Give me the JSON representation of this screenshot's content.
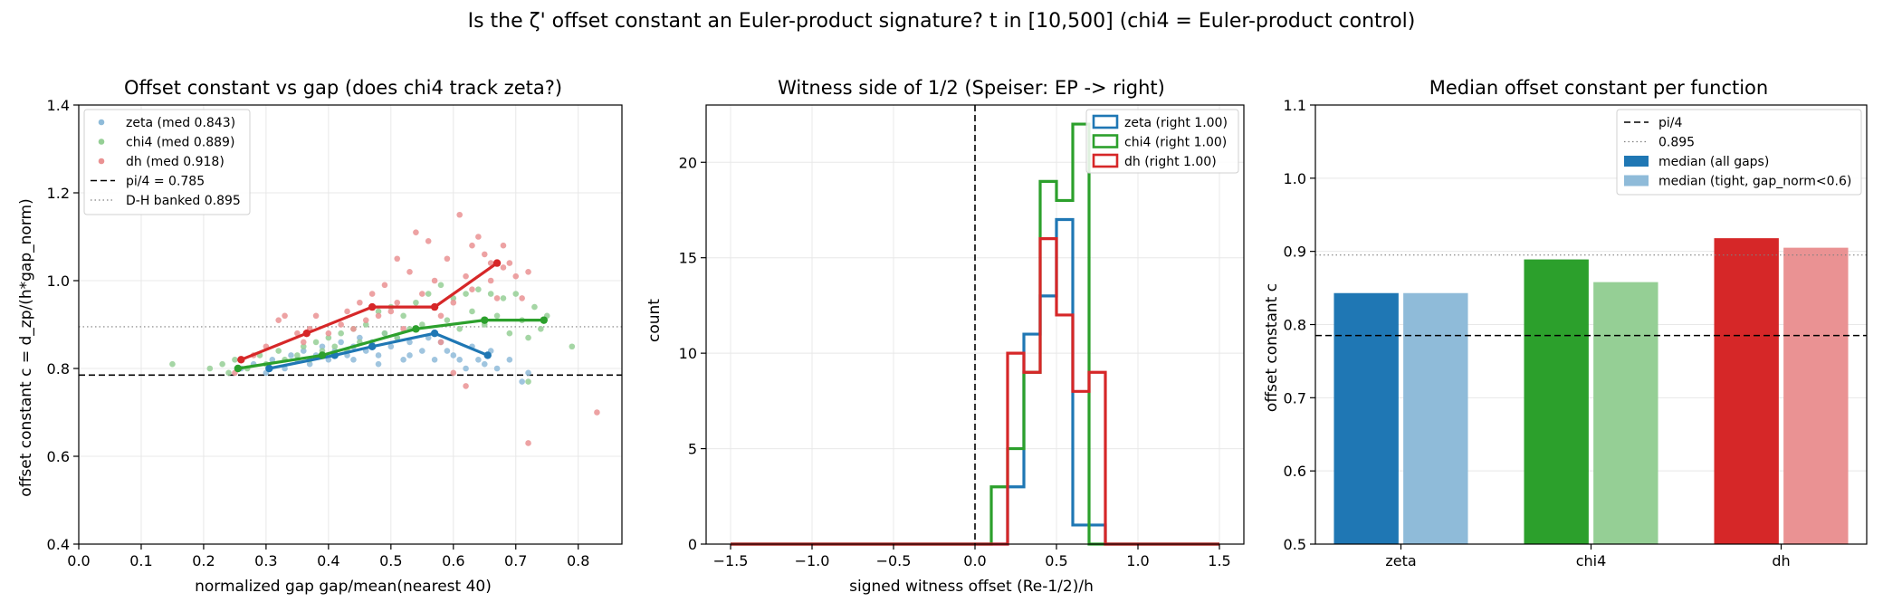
{
  "suptitle": "Is the ζ' offset constant an Euler-product signature?  t in [10,500]  (chi4 = Euler-product control)",
  "colors": {
    "zeta": "#1f77b4",
    "chi4": "#2ca02c",
    "dh": "#d62728",
    "zeta_light": "#8fbbd9",
    "chi4_light": "#95cf95",
    "dh_light": "#ea9293"
  },
  "chart_data": [
    {
      "type": "scatter",
      "title": "Offset constant vs gap  (does chi4 track zeta?)",
      "xlabel": "normalized gap  gap/mean(nearest 40)",
      "ylabel": "offset constant  c = d_zp/(h*gap_norm)",
      "xlim": [
        0.0,
        0.87
      ],
      "ylim": [
        0.4,
        1.4
      ],
      "xticks": [
        0.0,
        0.1,
        0.2,
        0.3,
        0.4,
        0.5,
        0.6,
        0.7,
        0.8
      ],
      "yticks": [
        0.4,
        0.6,
        0.8,
        1.0,
        1.2,
        1.4
      ],
      "grid": true,
      "legend_position": "top-left",
      "legend": [
        {
          "label": "zeta (med 0.843)",
          "kind": "dot",
          "color": "#8fbbd9"
        },
        {
          "label": "chi4 (med 0.889)",
          "kind": "dot",
          "color": "#95cf95"
        },
        {
          "label": "dh (med 0.918)",
          "kind": "dot",
          "color": "#ea9293"
        },
        {
          "label": "pi/4 = 0.785",
          "kind": "dashed",
          "color": "#000000"
        },
        {
          "label": "D-H banked 0.895",
          "kind": "dotted",
          "color": "#808080"
        }
      ],
      "hlines": [
        {
          "y": 0.785,
          "style": "dashed",
          "color": "#000000"
        },
        {
          "y": 0.895,
          "style": "dotted",
          "color": "#808080"
        }
      ],
      "series": [
        {
          "key": "zeta",
          "points": [
            [
              0.26,
              0.8
            ],
            [
              0.28,
              0.81
            ],
            [
              0.3,
              0.79
            ],
            [
              0.31,
              0.82
            ],
            [
              0.33,
              0.8
            ],
            [
              0.34,
              0.83
            ],
            [
              0.35,
              0.82
            ],
            [
              0.36,
              0.84
            ],
            [
              0.37,
              0.81
            ],
            [
              0.38,
              0.83
            ],
            [
              0.39,
              0.85
            ],
            [
              0.4,
              0.82
            ],
            [
              0.41,
              0.84
            ],
            [
              0.42,
              0.86
            ],
            [
              0.43,
              0.83
            ],
            [
              0.44,
              0.85
            ],
            [
              0.45,
              0.87
            ],
            [
              0.46,
              0.84
            ],
            [
              0.47,
              0.86
            ],
            [
              0.48,
              0.83
            ],
            [
              0.49,
              0.88
            ],
            [
              0.5,
              0.85
            ],
            [
              0.51,
              0.87
            ],
            [
              0.52,
              0.82
            ],
            [
              0.53,
              0.86
            ],
            [
              0.54,
              0.89
            ],
            [
              0.55,
              0.84
            ],
            [
              0.56,
              0.87
            ],
            [
              0.57,
              0.82
            ],
            [
              0.58,
              0.86
            ],
            [
              0.59,
              0.84
            ],
            [
              0.6,
              0.83
            ],
            [
              0.61,
              0.82
            ],
            [
              0.62,
              0.8
            ],
            [
              0.63,
              0.85
            ],
            [
              0.64,
              0.82
            ],
            [
              0.65,
              0.81
            ],
            [
              0.66,
              0.84
            ],
            [
              0.67,
              0.8
            ],
            [
              0.69,
              0.82
            ],
            [
              0.71,
              0.77
            ],
            [
              0.72,
              0.79
            ],
            [
              0.48,
              0.81
            ],
            [
              0.44,
              0.82
            ],
            [
              0.53,
              0.83
            ]
          ],
          "medians_x": [
            0.305,
            0.41,
            0.47,
            0.57,
            0.655
          ],
          "medians_y": [
            0.8,
            0.83,
            0.85,
            0.88,
            0.83
          ]
        },
        {
          "key": "chi4",
          "points": [
            [
              0.15,
              0.81
            ],
            [
              0.21,
              0.8
            ],
            [
              0.23,
              0.81
            ],
            [
              0.24,
              0.79
            ],
            [
              0.25,
              0.82
            ],
            [
              0.27,
              0.8
            ],
            [
              0.29,
              0.83
            ],
            [
              0.3,
              0.81
            ],
            [
              0.32,
              0.84
            ],
            [
              0.33,
              0.82
            ],
            [
              0.35,
              0.83
            ],
            [
              0.36,
              0.85
            ],
            [
              0.37,
              0.82
            ],
            [
              0.38,
              0.86
            ],
            [
              0.39,
              0.84
            ],
            [
              0.4,
              0.87
            ],
            [
              0.41,
              0.85
            ],
            [
              0.42,
              0.88
            ],
            [
              0.43,
              0.84
            ],
            [
              0.44,
              0.89
            ],
            [
              0.45,
              0.86
            ],
            [
              0.46,
              0.9
            ],
            [
              0.47,
              0.85
            ],
            [
              0.48,
              0.93
            ],
            [
              0.49,
              0.88
            ],
            [
              0.5,
              0.94
            ],
            [
              0.51,
              0.87
            ],
            [
              0.52,
              0.92
            ],
            [
              0.53,
              0.89
            ],
            [
              0.54,
              0.95
            ],
            [
              0.55,
              0.9
            ],
            [
              0.56,
              0.97
            ],
            [
              0.57,
              0.88
            ],
            [
              0.58,
              0.99
            ],
            [
              0.59,
              0.91
            ],
            [
              0.6,
              0.96
            ],
            [
              0.61,
              0.89
            ],
            [
              0.62,
              0.97
            ],
            [
              0.63,
              0.93
            ],
            [
              0.64,
              0.98
            ],
            [
              0.65,
              0.9
            ],
            [
              0.66,
              0.97
            ],
            [
              0.67,
              0.92
            ],
            [
              0.68,
              0.96
            ],
            [
              0.69,
              0.88
            ],
            [
              0.7,
              0.97
            ],
            [
              0.71,
              0.91
            ],
            [
              0.72,
              0.87
            ],
            [
              0.73,
              0.94
            ],
            [
              0.74,
              0.89
            ],
            [
              0.75,
              0.92
            ],
            [
              0.79,
              0.85
            ],
            [
              0.72,
              0.77
            ]
          ],
          "medians_x": [
            0.255,
            0.39,
            0.54,
            0.65,
            0.745
          ],
          "medians_y": [
            0.8,
            0.83,
            0.89,
            0.91,
            0.91
          ]
        },
        {
          "key": "dh",
          "points": [
            [
              0.25,
              0.79
            ],
            [
              0.28,
              0.83
            ],
            [
              0.3,
              0.85
            ],
            [
              0.32,
              0.91
            ],
            [
              0.33,
              0.92
            ],
            [
              0.35,
              0.88
            ],
            [
              0.36,
              0.86
            ],
            [
              0.37,
              0.89
            ],
            [
              0.38,
              0.92
            ],
            [
              0.4,
              0.88
            ],
            [
              0.42,
              0.9
            ],
            [
              0.43,
              0.93
            ],
            [
              0.44,
              0.89
            ],
            [
              0.45,
              0.95
            ],
            [
              0.46,
              0.91
            ],
            [
              0.47,
              0.97
            ],
            [
              0.48,
              0.92
            ],
            [
              0.49,
              0.99
            ],
            [
              0.5,
              0.93
            ],
            [
              0.51,
              0.95
            ],
            [
              0.52,
              0.89
            ],
            [
              0.53,
              1.02
            ],
            [
              0.54,
              1.11
            ],
            [
              0.55,
              0.97
            ],
            [
              0.56,
              1.09
            ],
            [
              0.57,
              1.0
            ],
            [
              0.58,
              0.86
            ],
            [
              0.59,
              1.05
            ],
            [
              0.6,
              0.95
            ],
            [
              0.61,
              1.15
            ],
            [
              0.62,
              1.01
            ],
            [
              0.63,
              0.98
            ],
            [
              0.64,
              1.1
            ],
            [
              0.65,
              1.06
            ],
            [
              0.66,
              1.0
            ],
            [
              0.67,
              0.96
            ],
            [
              0.68,
              1.08
            ],
            [
              0.69,
              1.04
            ],
            [
              0.7,
              1.01
            ],
            [
              0.71,
              0.96
            ],
            [
              0.72,
              1.02
            ],
            [
              0.63,
              1.08
            ],
            [
              0.6,
              0.79
            ],
            [
              0.62,
              0.76
            ],
            [
              0.72,
              0.63
            ],
            [
              0.83,
              0.7
            ],
            [
              0.58,
              0.92
            ],
            [
              0.66,
              1.04
            ],
            [
              0.51,
              1.05
            ],
            [
              0.68,
              1.03
            ]
          ],
          "medians_x": [
            0.26,
            0.365,
            0.47,
            0.57,
            0.67
          ],
          "medians_y": [
            0.82,
            0.88,
            0.94,
            0.94,
            1.04
          ]
        }
      ]
    },
    {
      "type": "histogram",
      "title": "Witness side of 1/2  (Speiser: EP -> right)",
      "xlabel": "signed witness offset  (Re-1/2)/h",
      "ylabel": "count",
      "xlim": [
        -1.65,
        1.65
      ],
      "ylim": [
        0,
        23
      ],
      "xticks": [
        -1.5,
        -1.0,
        -0.5,
        0.0,
        0.5,
        1.0,
        1.5
      ],
      "yticks": [
        0,
        5,
        10,
        15,
        20
      ],
      "grid": true,
      "legend_position": "top-right",
      "vline": {
        "x": 0.0,
        "style": "dashed",
        "color": "#000000"
      },
      "bin_edges": [
        -1.5,
        0.0,
        0.1,
        0.2,
        0.3,
        0.4,
        0.5,
        0.6,
        0.7,
        0.8,
        1.5
      ],
      "series": [
        {
          "key": "zeta",
          "name": "zeta (right 1.00)",
          "counts": [
            0,
            0,
            0,
            3,
            11,
            13,
            17,
            1,
            1,
            0
          ]
        },
        {
          "key": "chi4",
          "name": "chi4 (right 1.00)",
          "counts": [
            0,
            0,
            3,
            5,
            9,
            19,
            18,
            22,
            0,
            0
          ]
        },
        {
          "key": "dh",
          "name": "dh (right 1.00)",
          "counts": [
            0,
            0,
            0,
            10,
            9,
            16,
            12,
            8,
            9,
            0
          ]
        }
      ]
    },
    {
      "type": "bar",
      "title": "Median offset constant per function",
      "xlabel": "",
      "ylabel": "offset constant  c",
      "ylim": [
        0.5,
        1.1
      ],
      "yticks": [
        0.5,
        0.6,
        0.7,
        0.8,
        0.9,
        1.0,
        1.1
      ],
      "grid": true,
      "legend_position": "top-right",
      "categories": [
        "zeta",
        "chi4",
        "dh"
      ],
      "hlines": [
        {
          "y": 0.785,
          "style": "dashed",
          "color": "#000000",
          "label": "pi/4"
        },
        {
          "y": 0.895,
          "style": "dotted",
          "color": "#808080",
          "label": "0.895"
        }
      ],
      "series": [
        {
          "name": "median (all gaps)",
          "values": [
            0.843,
            0.889,
            0.918
          ]
        },
        {
          "name": "median (tight, gap_norm<0.6)",
          "values": [
            0.843,
            0.858,
            0.905
          ]
        }
      ]
    }
  ]
}
